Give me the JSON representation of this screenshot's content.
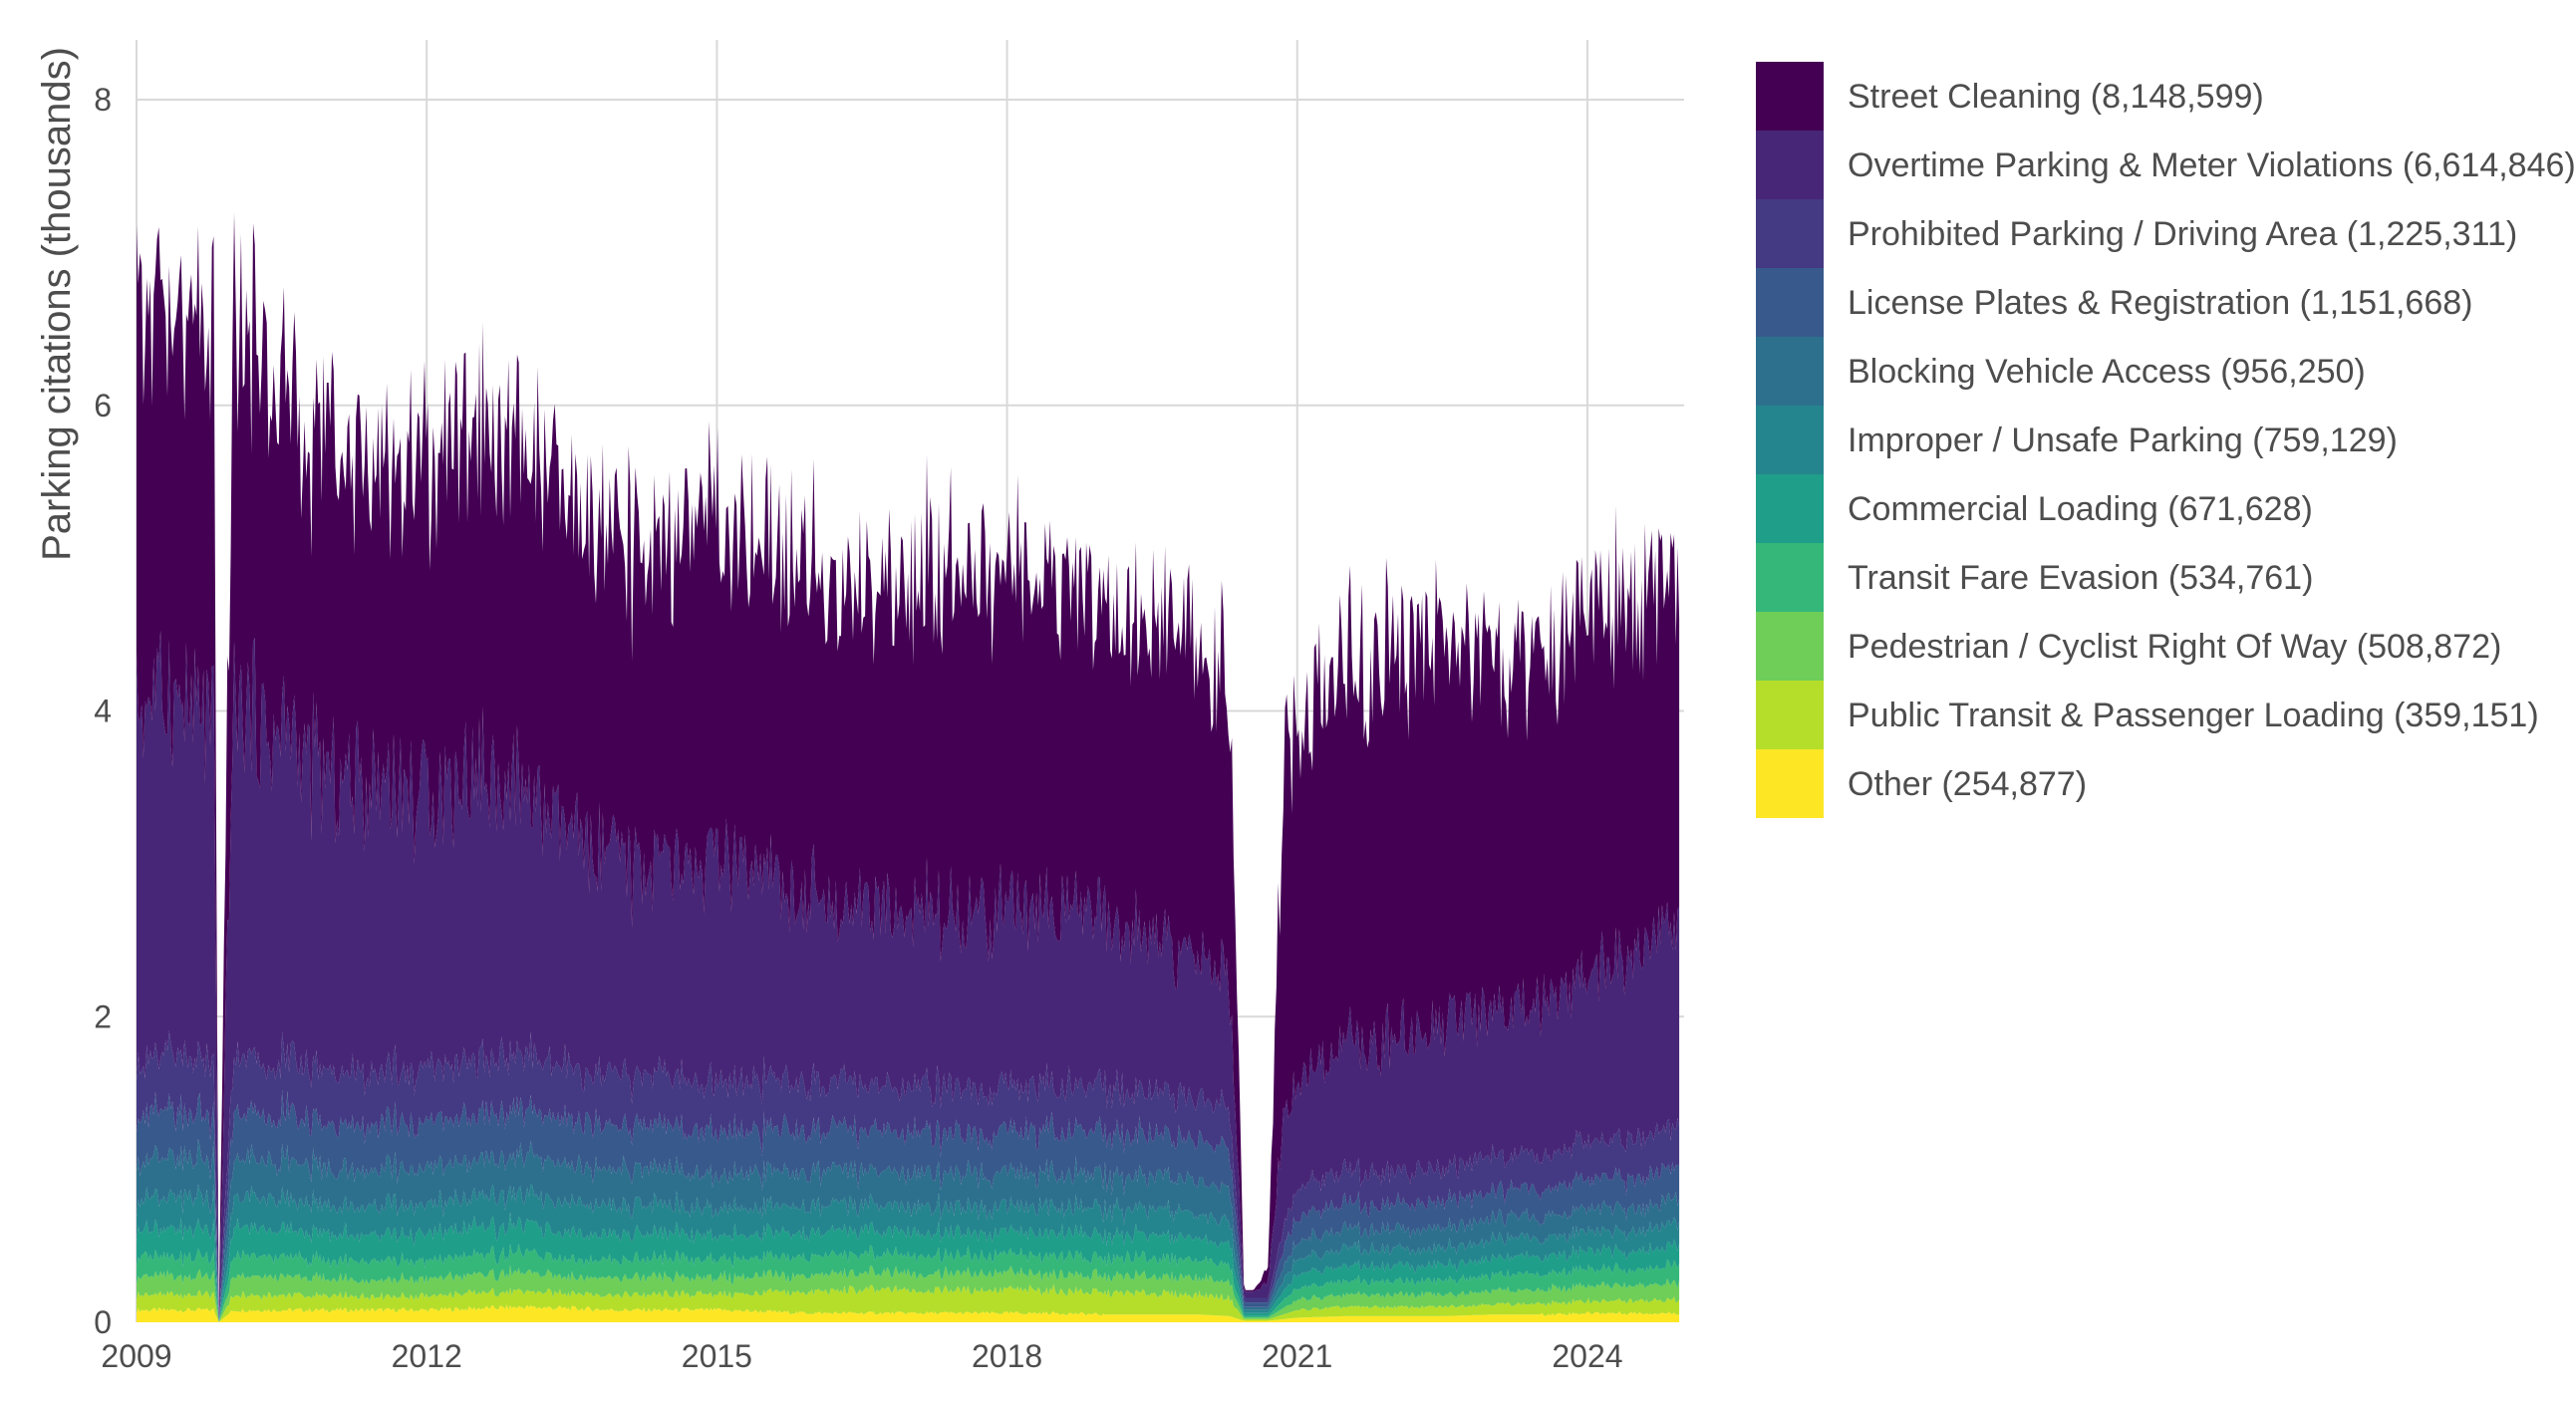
{
  "chart_data": {
    "type": "area",
    "stacked": true,
    "ylabel": "Parking citations (thousands)",
    "xlabel": "",
    "x_ticks": [
      "2009",
      "2012",
      "2015",
      "2018",
      "2021",
      "2024"
    ],
    "x_tick_values": [
      2009,
      2012,
      2015,
      2018,
      2021,
      2024
    ],
    "xlim": [
      2009,
      2025
    ],
    "y_ticks": [
      "0",
      "2",
      "4",
      "6",
      "8"
    ],
    "y_tick_values": [
      0,
      2,
      4,
      6,
      8
    ],
    "ylim": [
      0,
      8.4
    ],
    "grid": "on",
    "legend_position": "right",
    "x": [
      2009.0,
      2009.5,
      2009.8,
      2009.85,
      2010.0,
      2010.5,
      2011.0,
      2011.5,
      2012.0,
      2012.5,
      2013.0,
      2013.5,
      2014.0,
      2014.5,
      2015.0,
      2015.5,
      2016.0,
      2016.5,
      2017.0,
      2017.5,
      2018.0,
      2018.5,
      2019.0,
      2019.5,
      2020.0,
      2020.3,
      2020.45,
      2020.55,
      2020.7,
      2020.85,
      2021.0,
      2021.5,
      2022.0,
      2022.5,
      2023.0,
      2023.5,
      2024.0,
      2024.5,
      2024.95
    ],
    "series": [
      {
        "name": "Other (254,877)",
        "color": "#fde725",
        "values": [
          0.08,
          0.08,
          0.08,
          0,
          0.08,
          0.08,
          0.08,
          0.08,
          0.08,
          0.09,
          0.1,
          0.09,
          0.08,
          0.08,
          0.08,
          0.07,
          0.06,
          0.06,
          0.06,
          0.06,
          0.06,
          0.06,
          0.05,
          0.05,
          0.05,
          0.04,
          0.01,
          0.01,
          0.01,
          0.02,
          0.03,
          0.04,
          0.04,
          0.04,
          0.05,
          0.05,
          0.06,
          0.06,
          0.06
        ]
      },
      {
        "name": "Public Transit & Passenger Loading (359,151)",
        "color": "#b5de2b",
        "values": [
          0.1,
          0.1,
          0.1,
          0,
          0.1,
          0.1,
          0.09,
          0.09,
          0.09,
          0.1,
          0.1,
          0.1,
          0.1,
          0.1,
          0.1,
          0.12,
          0.14,
          0.15,
          0.15,
          0.15,
          0.15,
          0.15,
          0.14,
          0.14,
          0.13,
          0.12,
          0.01,
          0.01,
          0.01,
          0.03,
          0.05,
          0.06,
          0.06,
          0.06,
          0.07,
          0.07,
          0.08,
          0.08,
          0.09
        ]
      },
      {
        "name": "Pedestrian / Cyclist Right Of Way (508,872)",
        "color": "#6ece58",
        "values": [
          0.12,
          0.12,
          0.12,
          0,
          0.12,
          0.12,
          0.11,
          0.11,
          0.11,
          0.12,
          0.12,
          0.11,
          0.11,
          0.11,
          0.11,
          0.11,
          0.11,
          0.11,
          0.11,
          0.11,
          0.11,
          0.11,
          0.11,
          0.11,
          0.11,
          0.1,
          0.01,
          0.01,
          0.01,
          0.04,
          0.07,
          0.08,
          0.08,
          0.08,
          0.09,
          0.09,
          0.1,
          0.1,
          0.11
        ]
      },
      {
        "name": "Transit Fare Evasion (534,761)",
        "color": "#35b779",
        "values": [
          0.13,
          0.13,
          0.13,
          0,
          0.13,
          0.13,
          0.12,
          0.12,
          0.12,
          0.13,
          0.13,
          0.12,
          0.12,
          0.12,
          0.12,
          0.12,
          0.12,
          0.12,
          0.12,
          0.12,
          0.12,
          0.12,
          0.12,
          0.12,
          0.12,
          0.11,
          0.01,
          0.01,
          0.01,
          0.05,
          0.08,
          0.09,
          0.09,
          0.09,
          0.1,
          0.1,
          0.11,
          0.11,
          0.12
        ]
      },
      {
        "name": "Commercial Loading (671,628)",
        "color": "#1f9e89",
        "values": [
          0.18,
          0.18,
          0.18,
          0,
          0.18,
          0.18,
          0.17,
          0.17,
          0.17,
          0.18,
          0.18,
          0.17,
          0.17,
          0.16,
          0.16,
          0.16,
          0.15,
          0.15,
          0.15,
          0.15,
          0.15,
          0.15,
          0.15,
          0.15,
          0.14,
          0.13,
          0.02,
          0.02,
          0.02,
          0.06,
          0.09,
          0.1,
          0.1,
          0.1,
          0.11,
          0.11,
          0.12,
          0.12,
          0.13
        ]
      },
      {
        "name": "Improper / Unsafe Parking (759,129)",
        "color": "#25858e",
        "values": [
          0.2,
          0.2,
          0.2,
          0,
          0.2,
          0.2,
          0.19,
          0.19,
          0.19,
          0.2,
          0.2,
          0.19,
          0.19,
          0.18,
          0.18,
          0.18,
          0.17,
          0.17,
          0.17,
          0.17,
          0.17,
          0.17,
          0.17,
          0.17,
          0.16,
          0.15,
          0.02,
          0.02,
          0.02,
          0.07,
          0.1,
          0.11,
          0.11,
          0.11,
          0.12,
          0.12,
          0.13,
          0.13,
          0.14
        ]
      },
      {
        "name": "Blocking Vehicle Access (956,250)",
        "color": "#2d708e",
        "values": [
          0.25,
          0.25,
          0.25,
          0,
          0.25,
          0.25,
          0.24,
          0.24,
          0.24,
          0.25,
          0.25,
          0.24,
          0.24,
          0.23,
          0.23,
          0.23,
          0.22,
          0.22,
          0.22,
          0.22,
          0.22,
          0.22,
          0.22,
          0.22,
          0.21,
          0.2,
          0.02,
          0.02,
          0.02,
          0.08,
          0.12,
          0.13,
          0.13,
          0.13,
          0.14,
          0.14,
          0.15,
          0.15,
          0.16
        ]
      },
      {
        "name": "License Plates & Registration (1,151,668)",
        "color": "#38598c",
        "values": [
          0.3,
          0.3,
          0.3,
          0,
          0.3,
          0.3,
          0.29,
          0.29,
          0.29,
          0.3,
          0.3,
          0.29,
          0.29,
          0.28,
          0.28,
          0.28,
          0.27,
          0.27,
          0.27,
          0.27,
          0.27,
          0.27,
          0.27,
          0.27,
          0.26,
          0.25,
          0.03,
          0.03,
          0.03,
          0.12,
          0.16,
          0.17,
          0.17,
          0.17,
          0.18,
          0.18,
          0.2,
          0.2,
          0.22
        ]
      },
      {
        "name": "Prohibited Parking / Driving Area (1,225,311)",
        "color": "#443983",
        "values": [
          0.36,
          0.36,
          0.36,
          0,
          0.36,
          0.36,
          0.34,
          0.34,
          0.34,
          0.36,
          0.36,
          0.34,
          0.33,
          0.32,
          0.32,
          0.32,
          0.3,
          0.3,
          0.3,
          0.3,
          0.3,
          0.3,
          0.29,
          0.29,
          0.28,
          0.26,
          0.03,
          0.03,
          0.03,
          0.14,
          0.2,
          0.21,
          0.21,
          0.21,
          0.22,
          0.22,
          0.24,
          0.25,
          0.27
        ]
      },
      {
        "name": "Overtime Parking & Meter Violations (6,614,846)",
        "color": "#482677",
        "values": [
          2.4,
          2.3,
          2.2,
          0,
          2.3,
          2.15,
          1.9,
          1.95,
          1.8,
          1.9,
          1.7,
          1.5,
          1.4,
          1.35,
          1.45,
          1.3,
          1.2,
          1.15,
          1.15,
          1.15,
          1.2,
          1.15,
          1.1,
          1.0,
          0.9,
          0.85,
          0.04,
          0.04,
          0.1,
          0.7,
          0.7,
          0.85,
          0.9,
          0.95,
          0.95,
          1.0,
          1.1,
          1.2,
          1.3
        ]
      },
      {
        "name": "Street Cleaning (8,148,599)",
        "color": "#440154",
        "values": [
          2.56,
          2.48,
          2.36,
          0,
          2.48,
          2.23,
          2.17,
          2.12,
          2.16,
          2.3,
          2.26,
          2.13,
          2.07,
          2.09,
          2.27,
          2.21,
          2.16,
          2.1,
          2.2,
          2.2,
          2.25,
          2.1,
          2.02,
          2.02,
          2.05,
          1.98,
          0.01,
          0.01,
          0.1,
          2.19,
          2.3,
          2.4,
          2.5,
          2.45,
          2.27,
          2.16,
          2.31,
          2.3,
          2.2
        ]
      }
    ]
  }
}
